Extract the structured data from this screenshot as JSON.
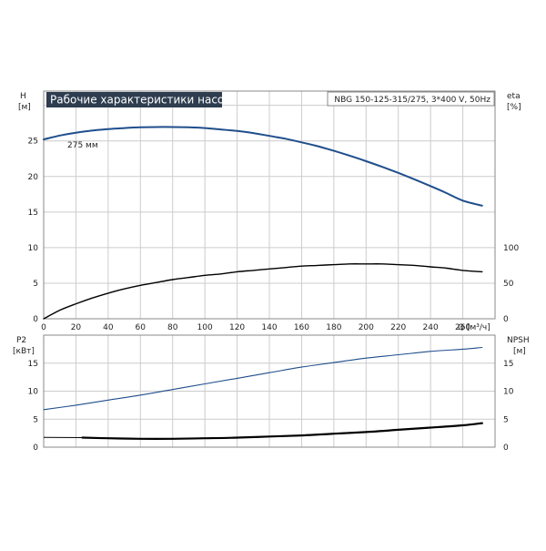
{
  "chart_data": {
    "type": "line",
    "title": "Рабочие характеристики насоса",
    "subtitle": "NBG 150-125-315/275, 3*400 V, 50Hz",
    "grid": true,
    "colors": {
      "head": "#1f4e8c",
      "p2": "#1f4e8c",
      "eta": "#000000",
      "npsh": "#000000",
      "title_bg": "#2e3d4f",
      "grid": "#cccccc",
      "frame": "#888888"
    },
    "top": {
      "x_label": "Q [м³/ч]",
      "x_ticks": [
        "0",
        "20",
        "40",
        "60",
        "80",
        "100",
        "120",
        "140",
        "160",
        "180",
        "200",
        "220",
        "240",
        "260"
      ],
      "xlim": [
        0,
        280
      ],
      "left_label": "H",
      "left_unit": "[м]",
      "left_ticks": [
        "0",
        "5",
        "10",
        "15",
        "20",
        "25"
      ],
      "left_lim": [
        0,
        32
      ],
      "right_label": "eta",
      "right_unit": "[%]",
      "right_ticks": [
        "0",
        "50",
        "100"
      ],
      "right_lim": [
        0,
        320
      ],
      "annotation": "275 мм",
      "series": [
        {
          "key": "head",
          "axis": "left",
          "x": [
            0,
            10,
            20,
            30,
            40,
            50,
            60,
            70,
            80,
            90,
            100,
            110,
            120,
            130,
            140,
            150,
            160,
            170,
            180,
            190,
            200,
            210,
            220,
            230,
            240,
            250,
            260,
            272
          ],
          "y": [
            25.2,
            25.75,
            26.15,
            26.45,
            26.65,
            26.8,
            26.9,
            26.95,
            26.95,
            26.9,
            26.8,
            26.6,
            26.4,
            26.1,
            25.7,
            25.3,
            24.8,
            24.25,
            23.6,
            22.9,
            22.15,
            21.35,
            20.5,
            19.6,
            18.65,
            17.65,
            16.6,
            15.9
          ]
        },
        {
          "key": "eta",
          "axis": "right",
          "x": [
            0,
            10,
            20,
            30,
            40,
            50,
            60,
            70,
            80,
            90,
            100,
            110,
            120,
            130,
            140,
            150,
            160,
            170,
            180,
            190,
            200,
            210,
            220,
            230,
            240,
            250,
            260,
            272
          ],
          "y": [
            0,
            12,
            21,
            29,
            36,
            42,
            47,
            51,
            55,
            58,
            61,
            63,
            66,
            68,
            70,
            72,
            74,
            75,
            76,
            77,
            77,
            77,
            76,
            75,
            73,
            71,
            68,
            66
          ]
        }
      ]
    },
    "bottom": {
      "x_ticks": [
        "0",
        "20",
        "40",
        "60",
        "80",
        "100",
        "120",
        "140",
        "160",
        "180",
        "200",
        "220",
        "240",
        "260"
      ],
      "xlim": [
        0,
        280
      ],
      "left_label": "P2",
      "left_unit": "[кВт]",
      "left_ticks": [
        "0",
        "5",
        "10",
        "15"
      ],
      "left_lim": [
        0,
        20
      ],
      "right_label": "NPSH",
      "right_unit": "[м]",
      "right_ticks": [
        "0",
        "5",
        "10",
        "15"
      ],
      "right_lim": [
        0,
        20
      ],
      "series": [
        {
          "key": "p2",
          "axis": "left",
          "x": [
            0,
            20,
            40,
            60,
            80,
            100,
            120,
            140,
            160,
            180,
            200,
            220,
            240,
            260,
            272
          ],
          "y": [
            6.7,
            7.5,
            8.4,
            9.3,
            10.3,
            11.3,
            12.3,
            13.3,
            14.3,
            15.1,
            15.9,
            16.5,
            17.1,
            17.5,
            17.8
          ]
        },
        {
          "key": "npsh",
          "axis": "right",
          "x": [
            24,
            40,
            60,
            80,
            100,
            120,
            140,
            160,
            180,
            200,
            220,
            240,
            260,
            272
          ],
          "y": [
            1.7,
            1.6,
            1.5,
            1.5,
            1.6,
            1.7,
            1.9,
            2.1,
            2.4,
            2.7,
            3.1,
            3.5,
            3.9,
            4.3
          ]
        }
      ]
    }
  }
}
